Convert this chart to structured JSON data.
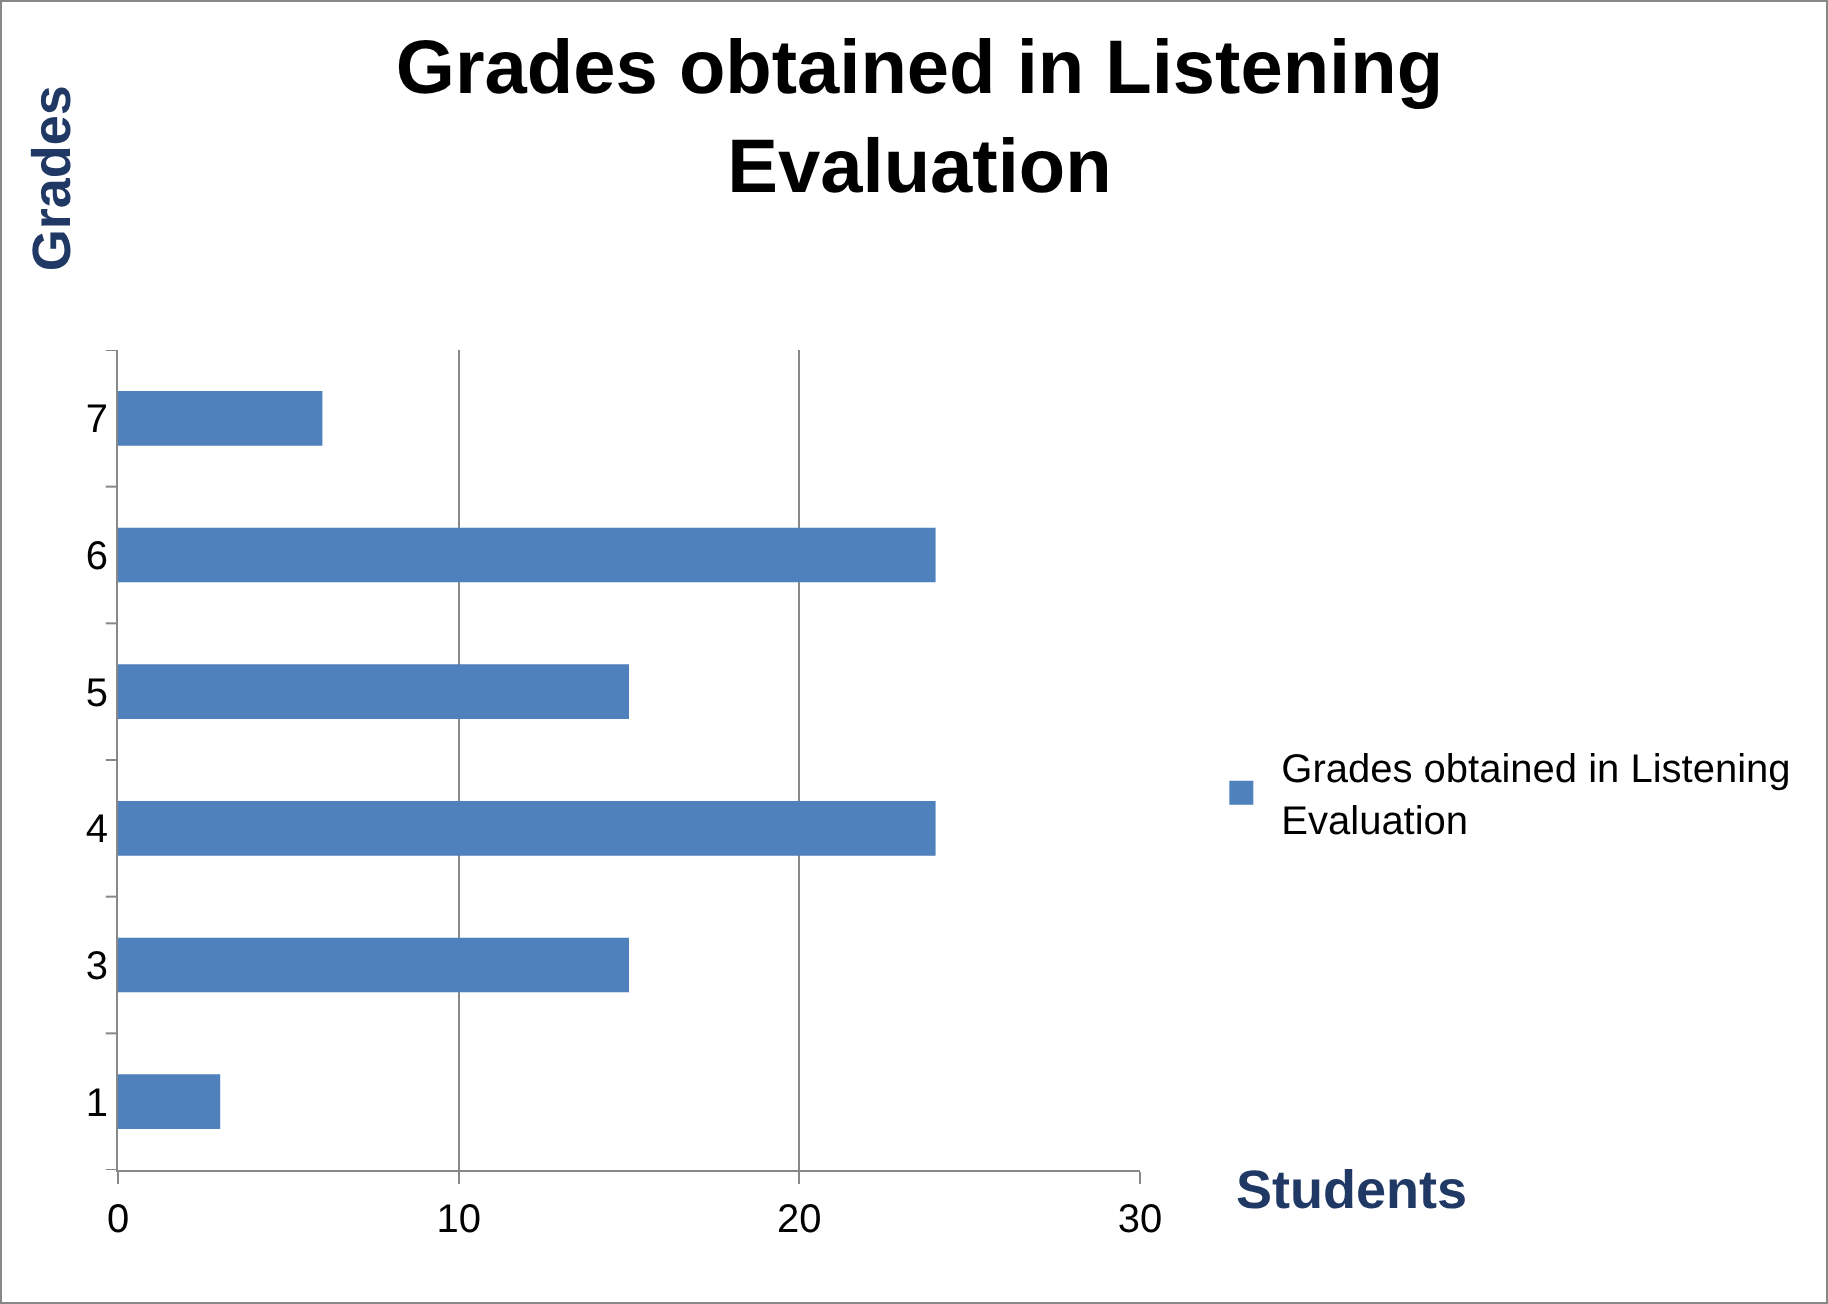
{
  "chart_data": {
    "type": "bar",
    "orientation": "horizontal",
    "title": "Grades obtained in Listening Evaluation",
    "xlabel": "Students",
    "ylabel": "Grades",
    "categories": [
      "7",
      "6",
      "5",
      "4",
      "3",
      "1"
    ],
    "series": [
      {
        "name": "Grades obtained in Listening Evaluation",
        "color": "#4f81bd",
        "values": [
          6,
          24,
          15,
          24,
          15,
          3
        ]
      }
    ],
    "xlim": [
      0,
      30
    ],
    "xticks": [
      0,
      10,
      20,
      30
    ],
    "grid": "x",
    "legend": "right"
  }
}
